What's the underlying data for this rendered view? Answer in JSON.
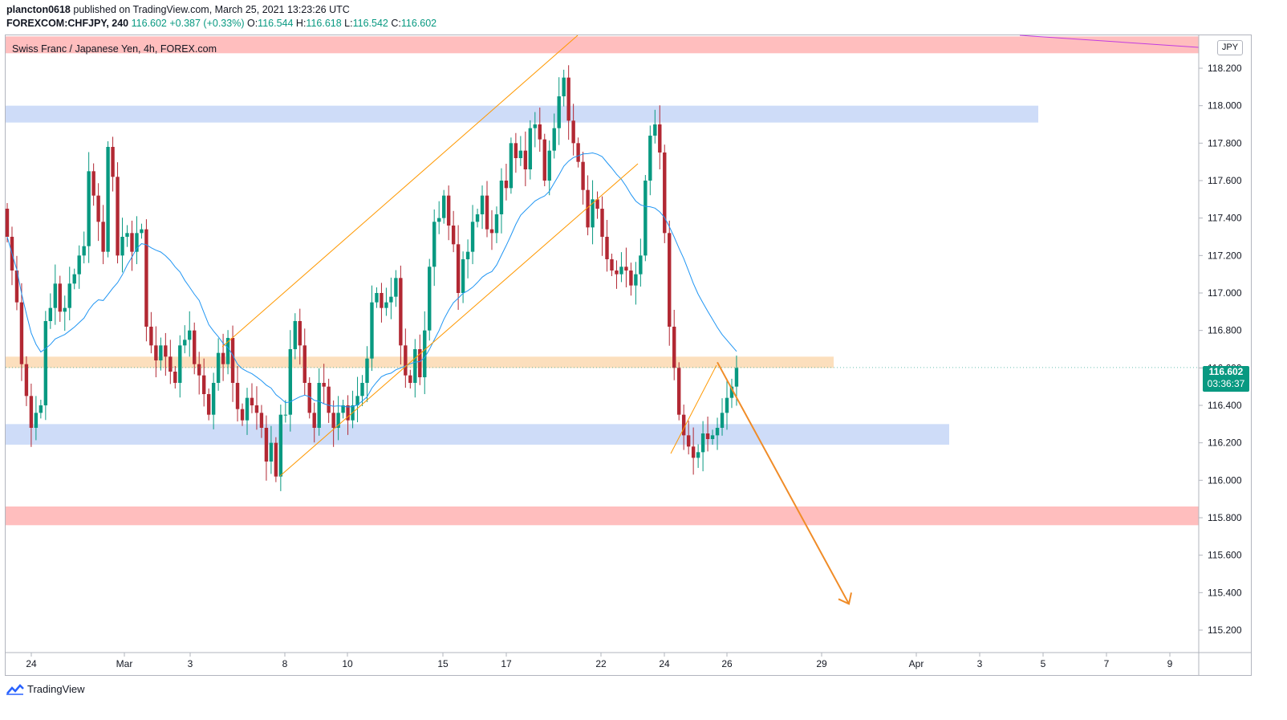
{
  "header": {
    "author": "plancton0618",
    "published_text": "published on TradingView.com, March 25, 2021 13:23:26 UTC",
    "symbol": "FOREXCOM:CHFJPY, 240",
    "last": "116.602",
    "change": "+0.387 (+0.33%)",
    "open_label": "O:",
    "open": "116.544",
    "high_label": "H:",
    "high": "116.618",
    "low_label": "L:",
    "low": "116.542",
    "close_label": "C:",
    "close": "116.602"
  },
  "chart_title": "Swiss Franc / Japanese Yen, 4h, FOREX.com",
  "currency_label": "JPY",
  "price_tag": {
    "price": "116.602",
    "countdown": "03:36:37"
  },
  "brand": "TradingView",
  "colors": {
    "up": "#089981",
    "down": "#b22833",
    "ma": "#2196f3",
    "channel": "#ff9800",
    "red_zone": "#ffb3b3",
    "blue_zone": "#c5d6f7",
    "orange_zone": "#fcd9b2",
    "arrow": "#f08c28",
    "trendline": "#c23ce0"
  },
  "chart_data": {
    "type": "candlestick",
    "title": "Swiss Franc / Japanese Yen, 4h, FOREX.com",
    "interval": "4h",
    "ylim": [
      115.1,
      118.37
    ],
    "y_ticks": [
      "118.200",
      "118.000",
      "117.800",
      "117.600",
      "117.400",
      "117.200",
      "117.000",
      "116.800",
      "116.600",
      "116.400",
      "116.200",
      "116.000",
      "115.800",
      "115.600",
      "115.400",
      "115.200"
    ],
    "x_ticks": [
      "24",
      "Mar",
      "3",
      "8",
      "10",
      "15",
      "17",
      "22",
      "24",
      "26",
      "29",
      "Apr",
      "3",
      "5",
      "7",
      "9"
    ],
    "last_price": 116.602,
    "ma_period_note": "",
    "zones": [
      {
        "color": "red",
        "from": 118.28,
        "to": 118.37
      },
      {
        "color": "blue",
        "from": 117.91,
        "to": 118.0
      },
      {
        "color": "orange",
        "from": 116.6,
        "to": 116.66
      },
      {
        "color": "blue",
        "from": 116.19,
        "to": 116.3
      },
      {
        "color": "red",
        "from": 115.76,
        "to": 115.86
      }
    ],
    "projection": {
      "from": 116.63,
      "to": 115.34
    }
  }
}
